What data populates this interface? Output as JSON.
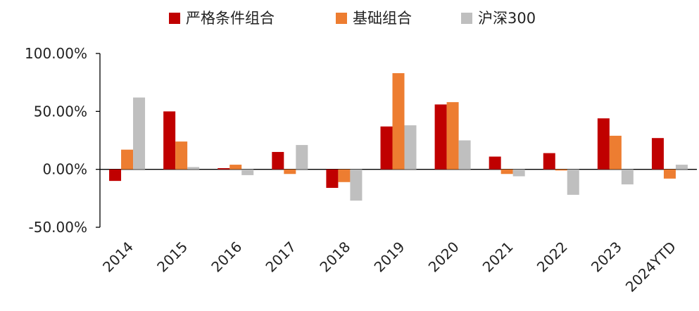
{
  "chart_data": {
    "type": "bar",
    "categories": [
      "2014",
      "2015",
      "2016",
      "2017",
      "2018",
      "2019",
      "2020",
      "2021",
      "2022",
      "2023",
      "2024YTD"
    ],
    "series": [
      {
        "name": "严格条件组合",
        "color": "#C00000",
        "values": [
          -10,
          50,
          1,
          15,
          -16,
          37,
          56,
          11,
          14,
          44,
          27
        ]
      },
      {
        "name": "基础组合",
        "color": "#ED7D31",
        "values": [
          17,
          24,
          4,
          -4,
          -11,
          83,
          58,
          -4,
          -1,
          29,
          -8
        ]
      },
      {
        "name": "沪深300",
        "color": "#BFBFBF",
        "values": [
          62,
          2,
          -5,
          21,
          -27,
          38,
          25,
          -6,
          -22,
          -13,
          4
        ]
      }
    ],
    "y_ticks": [
      "100.00%",
      "50.00%",
      "0.00%",
      "-50.00%"
    ],
    "y_tick_values": [
      100,
      50,
      0,
      -50
    ],
    "ylim": [
      -50,
      100
    ],
    "legend_position": "top",
    "grid": false
  }
}
